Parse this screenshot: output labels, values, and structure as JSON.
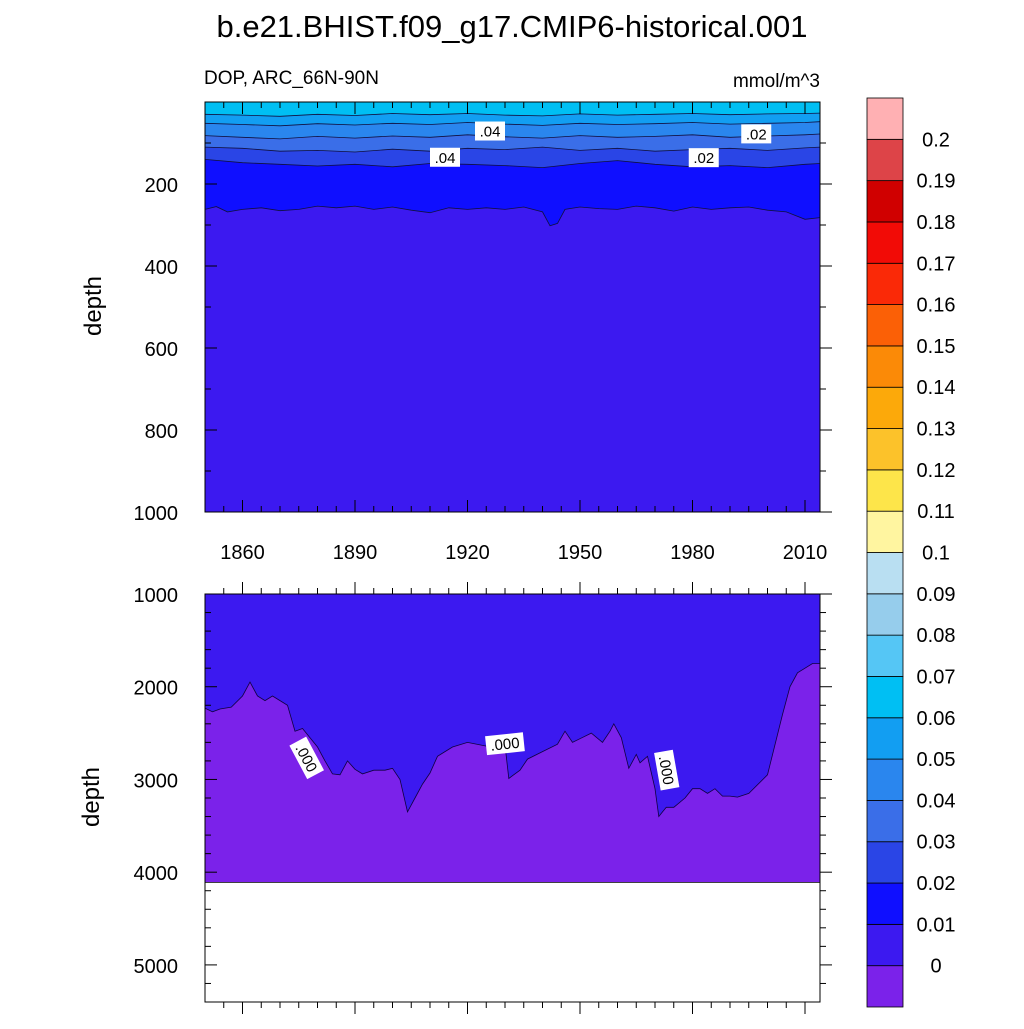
{
  "chart_data": {
    "type": "contour",
    "title": "b.e21.BHIST.f09_g17.CMIP6-historical.001",
    "left_string": "DOP, ARC_66N-90N",
    "right_string": "mmol/m^3",
    "x_ticks": [
      "1860",
      "1890",
      "1920",
      "1950",
      "1980",
      "2010"
    ],
    "x_range": [
      1850,
      2014
    ],
    "panels": [
      {
        "name": "upper",
        "ylabel": "depth",
        "y_range": [
          0,
          1000
        ],
        "y_ticks": [
          "200",
          "400",
          "600",
          "800",
          "1000"
        ],
        "contour_labels": [
          ".04",
          ".02",
          ".04",
          ".02"
        ],
        "level_depth_profiles": [
          {
            "level": 0.01,
            "fill_below": "#3c19f0",
            "x": [
              1850,
              1853,
              1856,
              1860,
              1865,
              1870,
              1875,
              1880,
              1885,
              1890,
              1895,
              1900,
              1905,
              1910,
              1915,
              1920,
              1925,
              1930,
              1935,
              1940,
              1942,
              1944,
              1946,
              1950,
              1955,
              1960,
              1965,
              1970,
              1975,
              1980,
              1985,
              1990,
              1995,
              2000,
              2005,
              2010,
              2014
            ],
            "depth": [
              262,
              255,
              268,
              262,
              258,
              265,
              262,
              254,
              258,
              254,
              262,
              256,
              264,
              270,
              258,
              262,
              258,
              262,
              256,
              268,
              302,
              296,
              262,
              256,
              260,
              262,
              254,
              258,
              266,
              256,
              262,
              258,
              256,
              264,
              268,
              286,
              282
            ]
          },
          {
            "level": 0.02,
            "fill_below": "#0f0fff",
            "x": [
              1850,
              1860,
              1870,
              1880,
              1890,
              1900,
              1910,
              1920,
              1930,
              1940,
              1950,
              1960,
              1970,
              1980,
              1990,
              2000,
              2010,
              2014
            ],
            "depth": [
              140,
              148,
              152,
              156,
              152,
              158,
              150,
              152,
              155,
              160,
              150,
              143,
              152,
              158,
              155,
              160,
              152,
              150
            ]
          },
          {
            "level": 0.03,
            "fill_below": "#2a45e6",
            "x": [
              1850,
              1860,
              1870,
              1880,
              1890,
              1900,
              1910,
              1920,
              1930,
              1940,
              1950,
              1960,
              1970,
              1980,
              1990,
              2000,
              2010,
              2014
            ],
            "depth": [
              110,
              113,
              120,
              118,
              122,
              115,
              120,
              113,
              116,
              110,
              118,
              113,
              120,
              116,
              113,
              118,
              112,
              110
            ]
          },
          {
            "level": 0.04,
            "fill_below": "#3a6ee8",
            "x": [
              1850,
              1860,
              1870,
              1880,
              1890,
              1900,
              1910,
              1920,
              1930,
              1940,
              1950,
              1960,
              1970,
              1980,
              1990,
              2000,
              2010,
              2014
            ],
            "depth": [
              82,
              86,
              90,
              84,
              88,
              83,
              86,
              80,
              85,
              88,
              82,
              86,
              84,
              80,
              86,
              83,
              80,
              78
            ]
          },
          {
            "level": 0.05,
            "fill_below": "#2a86ee",
            "x": [
              1850,
              1860,
              1870,
              1880,
              1890,
              1900,
              1910,
              1920,
              1930,
              1940,
              1950,
              1960,
              1970,
              1980,
              1990,
              2000,
              2010,
              2014
            ],
            "depth": [
              52,
              55,
              58,
              53,
              56,
              52,
              55,
              50,
              54,
              57,
              52,
              55,
              53,
              50,
              54,
              52,
              50,
              48
            ]
          },
          {
            "level": 0.06,
            "fill_below": "#129ef2",
            "x": [
              1850,
              1860,
              1870,
              1880,
              1890,
              1900,
              1910,
              1920,
              1930,
              1940,
              1950,
              1960,
              1970,
              1980,
              1990,
              2000,
              2010,
              2014
            ],
            "depth": [
              30,
              32,
              35,
              30,
              33,
              28,
              31,
              28,
              32,
              34,
              29,
              32,
              30,
              28,
              31,
              29,
              28,
              27
            ]
          }
        ],
        "surface_fill": "#00bff3"
      },
      {
        "name": "lower",
        "ylabel": "depth",
        "y_range": [
          1000,
          5400
        ],
        "y_ticks": [
          "1000",
          "2000",
          "3000",
          "4000",
          "5000"
        ],
        "contour_labels": [
          ".000",
          ".000",
          ".000"
        ],
        "upper_fill": "#3c19f0",
        "lower_fill": "#7b22ea",
        "ocean_bottom_depth": 4110,
        "zero_contour": {
          "level": 0.0,
          "x": [
            1850,
            1852,
            1854,
            1857,
            1860,
            1862,
            1864,
            1866,
            1868,
            1870,
            1872,
            1874,
            1876,
            1878,
            1880,
            1882,
            1884,
            1886,
            1888,
            1890,
            1892,
            1895,
            1898,
            1900,
            1902,
            1904,
            1906,
            1908,
            1910,
            1912,
            1914,
            1916,
            1920,
            1925,
            1928,
            1930,
            1931,
            1932,
            1934,
            1936,
            1940,
            1944,
            1946,
            1948,
            1950,
            1953,
            1956,
            1958,
            1959,
            1961,
            1963,
            1965,
            1966,
            1968,
            1970,
            1971,
            1972,
            1973,
            1975,
            1978,
            1980,
            1982,
            1984,
            1986,
            1988,
            1990,
            1992,
            1995,
            2000,
            2004,
            2006,
            2008,
            2010,
            2012,
            2014
          ],
          "depth": [
            2230,
            2270,
            2240,
            2220,
            2100,
            1950,
            2100,
            2150,
            2100,
            2150,
            2200,
            2480,
            2450,
            2550,
            2650,
            2800,
            2940,
            2950,
            2800,
            2890,
            2940,
            2900,
            2900,
            2880,
            3000,
            3350,
            3200,
            3050,
            2930,
            2750,
            2700,
            2650,
            2600,
            2640,
            2600,
            2630,
            2990,
            2960,
            2900,
            2780,
            2700,
            2620,
            2480,
            2600,
            2560,
            2500,
            2600,
            2480,
            2400,
            2550,
            2880,
            2730,
            2820,
            2750,
            3100,
            3400,
            3350,
            3300,
            3300,
            3200,
            3100,
            3100,
            3150,
            3100,
            3180,
            3180,
            3190,
            3150,
            2950,
            2300,
            2000,
            1850,
            1800,
            1750,
            1750
          ]
        }
      }
    ],
    "colorbar": {
      "labels": [
        "0",
        "0.01",
        "0.02",
        "0.03",
        "0.04",
        "0.05",
        "0.06",
        "0.07",
        "0.08",
        "0.09",
        "0.1",
        "0.11",
        "0.12",
        "0.13",
        "0.14",
        "0.15",
        "0.16",
        "0.17",
        "0.18",
        "0.19",
        "0.2"
      ],
      "colors": [
        "#7b22ea",
        "#3c19f0",
        "#0f0fff",
        "#2a45e6",
        "#3a6ee8",
        "#2a86ee",
        "#129ef2",
        "#00bff3",
        "#55c6f5",
        "#96cdec",
        "#b9dff2",
        "#fff5a0",
        "#fde54a",
        "#fcc22a",
        "#fca90a",
        "#fb8a07",
        "#fb6006",
        "#fa2907",
        "#f20b06",
        "#d00000",
        "#dd4448",
        "#ffb0b3"
      ]
    }
  }
}
